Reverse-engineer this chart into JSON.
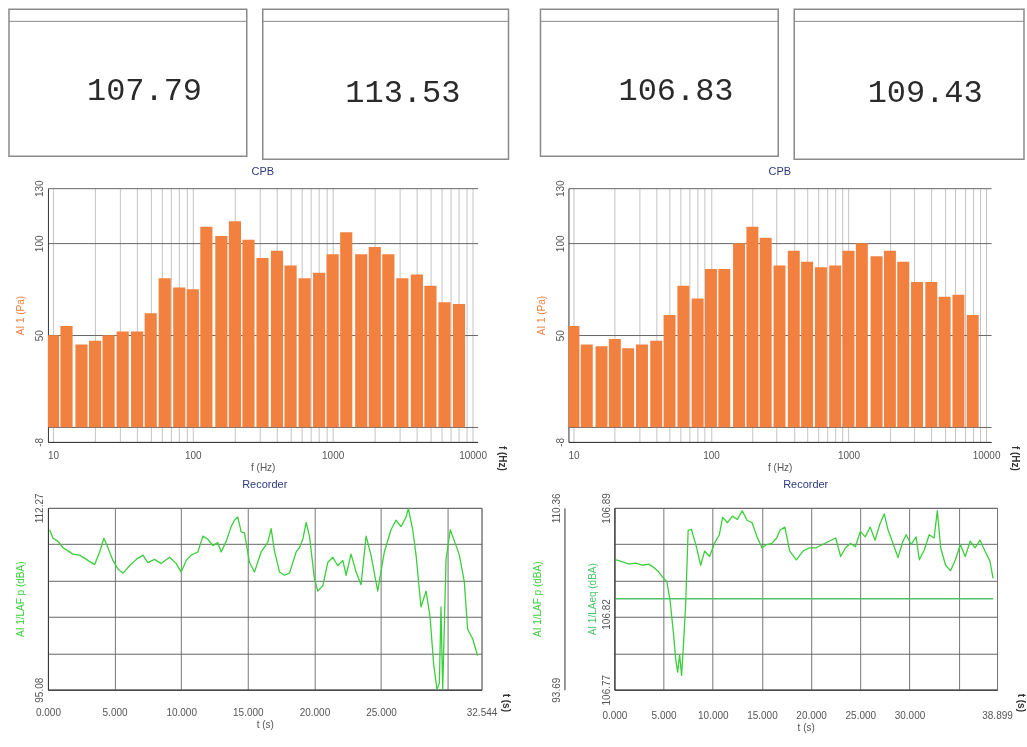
{
  "chart_data": [
    {
      "type": "other",
      "annotations": [
        "107.79"
      ]
    },
    {
      "type": "other",
      "annotations": [
        "113.53"
      ]
    },
    {
      "type": "other",
      "annotations": [
        "106.83"
      ]
    },
    {
      "type": "other",
      "annotations": [
        "109.43"
      ]
    },
    {
      "type": "bar",
      "title": "CPB",
      "xlabel": "f (Hz)",
      "ylabel": "AI 1 (Pa)",
      "annotations": [
        "f (Hz)"
      ],
      "log": "x",
      "x": [
        10,
        12.5,
        16,
        20,
        25,
        31.5,
        40,
        50,
        63,
        80,
        100,
        125,
        160,
        200,
        250,
        315,
        400,
        500,
        630,
        800,
        1000,
        1250,
        1600,
        2000,
        2500,
        3150,
        4000,
        5000,
        6300,
        8000
      ],
      "series": [
        {
          "color": "#f2813f",
          "values": [
            50,
            55,
            45,
            47,
            50,
            52,
            52,
            62,
            81,
            76,
            75,
            109,
            104,
            112,
            102,
            92,
            96,
            88,
            81,
            84,
            94,
            106,
            94,
            98,
            94,
            81,
            83,
            77,
            68,
            67
          ]
        }
      ],
      "xlim": [
        10,
        10000
      ],
      "xticks": [
        10,
        {
          "value": 20,
          "label": null
        },
        {
          "value": 30,
          "label": null
        },
        {
          "value": 40,
          "label": null
        },
        {
          "value": 50,
          "label": null
        },
        {
          "value": 60,
          "label": null
        },
        {
          "value": 70,
          "label": null
        },
        {
          "value": 80,
          "label": null
        },
        {
          "value": 90,
          "label": null
        },
        100,
        {
          "value": 200,
          "label": null
        },
        {
          "value": 300,
          "label": null
        },
        {
          "value": 400,
          "label": null
        },
        {
          "value": 500,
          "label": null
        },
        {
          "value": 600,
          "label": null
        },
        {
          "value": 700,
          "label": null
        },
        {
          "value": 800,
          "label": null
        },
        {
          "value": 900,
          "label": null
        },
        1000,
        {
          "value": 2000,
          "label": null
        },
        {
          "value": 3000,
          "label": null
        },
        {
          "value": 4000,
          "label": null
        },
        {
          "value": 5000,
          "label": null
        },
        {
          "value": 6000,
          "label": null
        },
        {
          "value": 7000,
          "label": null
        },
        {
          "value": 8000,
          "label": null
        },
        {
          "value": 9000,
          "label": null
        },
        10000
      ],
      "ylim": [
        -8,
        130
      ],
      "yticks": [
        -8,
        {
          "value": 0,
          "label": null
        },
        50,
        100,
        130
      ],
      "grid": true
    },
    {
      "type": "bar",
      "title": "CPB",
      "xlabel": "f (Hz)",
      "ylabel": "AI 1 (Pa)",
      "annotations": [
        "f (Hz)"
      ],
      "log": "x",
      "x": [
        10,
        12.5,
        16,
        20,
        25,
        31.5,
        40,
        50,
        63,
        80,
        100,
        125,
        160,
        200,
        250,
        315,
        400,
        500,
        630,
        800,
        1000,
        1250,
        1600,
        2000,
        2500,
        3150,
        4000,
        5000,
        6300,
        8000
      ],
      "series": [
        {
          "color": "#f2813f",
          "values": [
            55,
            45,
            44,
            48,
            43,
            45,
            47,
            61,
            77,
            70,
            86,
            86,
            100,
            109,
            103,
            88,
            96,
            90,
            87,
            88,
            96,
            100,
            93,
            96,
            90,
            79,
            79,
            71,
            72,
            61
          ]
        }
      ],
      "xlim": [
        10,
        10000
      ],
      "xticks": [
        10,
        {
          "value": 20,
          "label": null
        },
        {
          "value": 30,
          "label": null
        },
        {
          "value": 40,
          "label": null
        },
        {
          "value": 50,
          "label": null
        },
        {
          "value": 60,
          "label": null
        },
        {
          "value": 70,
          "label": null
        },
        {
          "value": 80,
          "label": null
        },
        {
          "value": 90,
          "label": null
        },
        100,
        {
          "value": 200,
          "label": null
        },
        {
          "value": 300,
          "label": null
        },
        {
          "value": 400,
          "label": null
        },
        {
          "value": 500,
          "label": null
        },
        {
          "value": 600,
          "label": null
        },
        {
          "value": 700,
          "label": null
        },
        {
          "value": 800,
          "label": null
        },
        {
          "value": 900,
          "label": null
        },
        1000,
        {
          "value": 2000,
          "label": null
        },
        {
          "value": 3000,
          "label": null
        },
        {
          "value": 4000,
          "label": null
        },
        {
          "value": 5000,
          "label": null
        },
        {
          "value": 6000,
          "label": null
        },
        {
          "value": 7000,
          "label": null
        },
        {
          "value": 8000,
          "label": null
        },
        {
          "value": 9000,
          "label": null
        },
        10000
      ],
      "ylim": [
        -8,
        130
      ],
      "yticks": [
        -8,
        {
          "value": 0,
          "label": null
        },
        50,
        100,
        130
      ],
      "grid": true
    },
    {
      "type": "line",
      "title": "Recorder",
      "xlabel": "t (s)",
      "ylabel": "AI 1/LAF p (dBA)",
      "annotations": [
        "t (s)"
      ],
      "series": [
        {
          "color": "#3ccf3c",
          "x": [
            0.13,
            0.38,
            0.75,
            1.13,
            1.5,
            1.88,
            2.38,
            2.88,
            3.5,
            3.88,
            4.2,
            4.5,
            4.88,
            5.25,
            5.63,
            6.13,
            6.63,
            7.13,
            7.5,
            8.0,
            8.5,
            9.13,
            9.63,
            10.0,
            10.38,
            10.75,
            11.25,
            11.63,
            12.0,
            12.38,
            12.75,
            13.0,
            13.38,
            13.75,
            14.0,
            14.25,
            14.5,
            14.75,
            15.13,
            15.5,
            16.0,
            16.5,
            16.75,
            17.0,
            17.38,
            17.75,
            18.13,
            18.63,
            18.88,
            19.13,
            19.38,
            19.63,
            20.0,
            20.25,
            20.63,
            21.0,
            21.38,
            21.75,
            22.13,
            22.38,
            22.75,
            23.13,
            23.5,
            23.88,
            24.25,
            24.75,
            25.25,
            25.75,
            26.13,
            26.5,
            26.88,
            27.05,
            27.38,
            27.63,
            28.0,
            28.38,
            28.68,
            28.95,
            29.2,
            29.38,
            29.5,
            29.63,
            29.88,
            30.2,
            30.63,
            30.88,
            31.25,
            31.5,
            31.88,
            32.25
          ],
          "values": [
            110.2,
            109.4,
            109.1,
            108.5,
            108.2,
            107.9,
            107.8,
            107.4,
            106.9,
            108.1,
            109.4,
            108.5,
            107.3,
            106.5,
            106.1,
            106.8,
            107.4,
            107.8,
            107.1,
            107.4,
            107.0,
            107.6,
            107.0,
            106.2,
            107.3,
            107.8,
            108.1,
            109.6,
            109.3,
            108.7,
            109.0,
            108.1,
            109.1,
            110.5,
            111.1,
            111.4,
            110.0,
            109.9,
            107.1,
            106.2,
            108.1,
            109.0,
            110.3,
            108.2,
            106.2,
            105.9,
            106.1,
            108.1,
            108.5,
            109.3,
            110.9,
            109.6,
            105.6,
            104.4,
            104.9,
            107.1,
            107.6,
            106.8,
            107.3,
            105.9,
            107.9,
            106.2,
            105.0,
            109.6,
            107.8,
            104.4,
            108.1,
            110.2,
            111.1,
            110.5,
            111.4,
            112.2,
            110.2,
            107.8,
            102.9,
            104.4,
            102.0,
            97.5,
            95.1,
            95.7,
            102.9,
            95.1,
            107.4,
            110.2,
            108.7,
            107.8,
            105.3,
            100.8,
            99.9,
            98.3
          ]
        }
      ],
      "xlim": [
        0,
        32.544
      ],
      "xticks": [
        {
          "value": 0,
          "label": "0.000"
        },
        {
          "value": 5,
          "label": "5.000"
        },
        {
          "value": 10,
          "label": "10.000"
        },
        {
          "value": 15,
          "label": "15.000"
        },
        {
          "value": 20,
          "label": "20.000"
        },
        {
          "value": 25,
          "label": "25.000"
        },
        {
          "value": 30,
          "label": null
        },
        32.544
      ],
      "ylim": [
        95.08,
        112.27
      ],
      "yticks": [
        95.08,
        {
          "value": 98.52,
          "label": null
        },
        {
          "value": 101.96,
          "label": null
        },
        {
          "value": 105.39,
          "label": null
        },
        {
          "value": 108.83,
          "label": null
        },
        112.27
      ],
      "grid": true
    },
    {
      "type": "line",
      "title": "Recorder",
      "xlabel": "t (s)",
      "ylabel": "AI 1/LAF p (dBA)",
      "y2label": "AI 1/LAeq (dBA)",
      "annotations": [
        "t (s)"
      ],
      "series": [
        {
          "color": "#3ccf3c",
          "x": [
            0.17,
            0.83,
            1.5,
            2.17,
            2.83,
            3.5,
            4.0,
            4.5,
            5.0,
            5.33,
            5.67,
            6.0,
            6.23,
            6.43,
            6.63,
            6.83,
            7.0,
            7.23,
            7.5,
            7.83,
            8.33,
            8.77,
            9.17,
            9.67,
            10.17,
            10.67,
            11.0,
            11.5,
            12.0,
            12.5,
            13.0,
            13.5,
            14.0,
            14.5,
            15.0,
            15.5,
            16.0,
            16.5,
            16.83,
            17.33,
            17.83,
            18.5,
            19.17,
            19.83,
            20.5,
            21.17,
            21.83,
            22.5,
            23.0,
            23.5,
            24.0,
            24.5,
            25.0,
            25.5,
            26.0,
            26.5,
            27.0,
            27.43,
            27.83,
            28.33,
            28.83,
            29.33,
            29.67,
            30.17,
            30.67,
            31.0,
            31.5,
            32.0,
            32.5,
            32.83,
            33.17,
            33.67,
            34.17,
            34.67,
            35.17,
            35.67,
            36.17,
            36.67,
            37.17,
            37.67,
            38.17,
            38.5
          ],
          "values": [
            105.6,
            105.4,
            105.2,
            105.3,
            105.1,
            105.2,
            104.9,
            104.5,
            103.9,
            103.6,
            101.8,
            98.9,
            96.5,
            95.3,
            96.9,
            95.0,
            97.5,
            101.2,
            108.3,
            108.4,
            106.8,
            105.1,
            106.4,
            105.9,
            107.1,
            107.9,
            109.5,
            109.0,
            109.6,
            109.3,
            110.1,
            109.2,
            109.0,
            107.7,
            106.7,
            107.0,
            107.1,
            107.6,
            108.3,
            108.6,
            106.4,
            105.6,
            106.4,
            106.7,
            106.7,
            107.0,
            107.3,
            107.6,
            105.9,
            106.7,
            107.1,
            106.8,
            108.2,
            107.7,
            108.6,
            107.4,
            108.9,
            109.8,
            108.3,
            107.1,
            105.8,
            107.3,
            107.9,
            107.0,
            107.7,
            105.6,
            106.5,
            107.9,
            107.6,
            110.1,
            106.7,
            105.1,
            104.6,
            105.6,
            107.0,
            105.9,
            107.3,
            106.7,
            107.4,
            106.4,
            105.5,
            103.9
          ]
        },
        {
          "color": "#4cc46a",
          "axis": "y2",
          "x": [
            0.17,
            38.5
          ],
          "values": [
            106.83,
            106.83
          ]
        }
      ],
      "xlim": [
        0,
        38.899
      ],
      "xticks": [
        {
          "value": 0,
          "label": "0.000"
        },
        {
          "value": 5,
          "label": "5.000"
        },
        {
          "value": 10,
          "label": "10.000"
        },
        {
          "value": 15,
          "label": "15.000"
        },
        {
          "value": 20,
          "label": "20.000"
        },
        {
          "value": 25,
          "label": "25.000"
        },
        {
          "value": 30,
          "label": "30.000"
        },
        {
          "value": 35,
          "label": null
        },
        38.899
      ],
      "ylim": [
        93.69,
        110.36
      ],
      "yticks": [
        93.69,
        {
          "value": 97.02,
          "label": null
        },
        {
          "value": 100.36,
          "label": null
        },
        {
          "value": 103.69,
          "label": null
        },
        {
          "value": 107.03,
          "label": null
        },
        110.36
      ],
      "y2lim": [
        106.77,
        106.89
      ],
      "y2ticks": [
        106.77,
        106.82,
        106.89
      ],
      "grid": true
    }
  ]
}
